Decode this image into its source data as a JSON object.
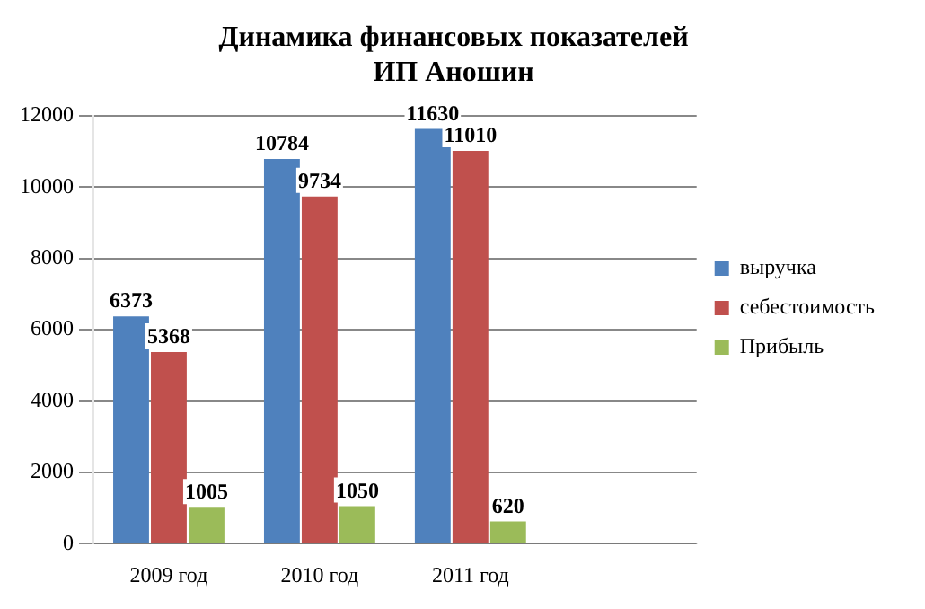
{
  "chart_data": {
    "type": "bar",
    "title": "Динамика финансовых показателей\nИП Аношин",
    "categories": [
      "2009 год",
      "2010 год",
      "2011 год",
      null
    ],
    "series": [
      {
        "name": "выручка",
        "color": "#4f81bd",
        "values": [
          6373,
          10784,
          11630,
          null
        ]
      },
      {
        "name": "себестоимость",
        "color": "#c0504d",
        "values": [
          5368,
          9734,
          11010,
          null
        ]
      },
      {
        "name": "Прибыль",
        "color": "#9bbb59",
        "values": [
          1005,
          1050,
          620,
          null
        ]
      }
    ],
    "ylim": [
      0,
      12000
    ],
    "yticks": [
      0,
      2000,
      4000,
      6000,
      8000,
      10000,
      12000
    ],
    "grid": "y",
    "legend": "right",
    "data_labels": true
  }
}
